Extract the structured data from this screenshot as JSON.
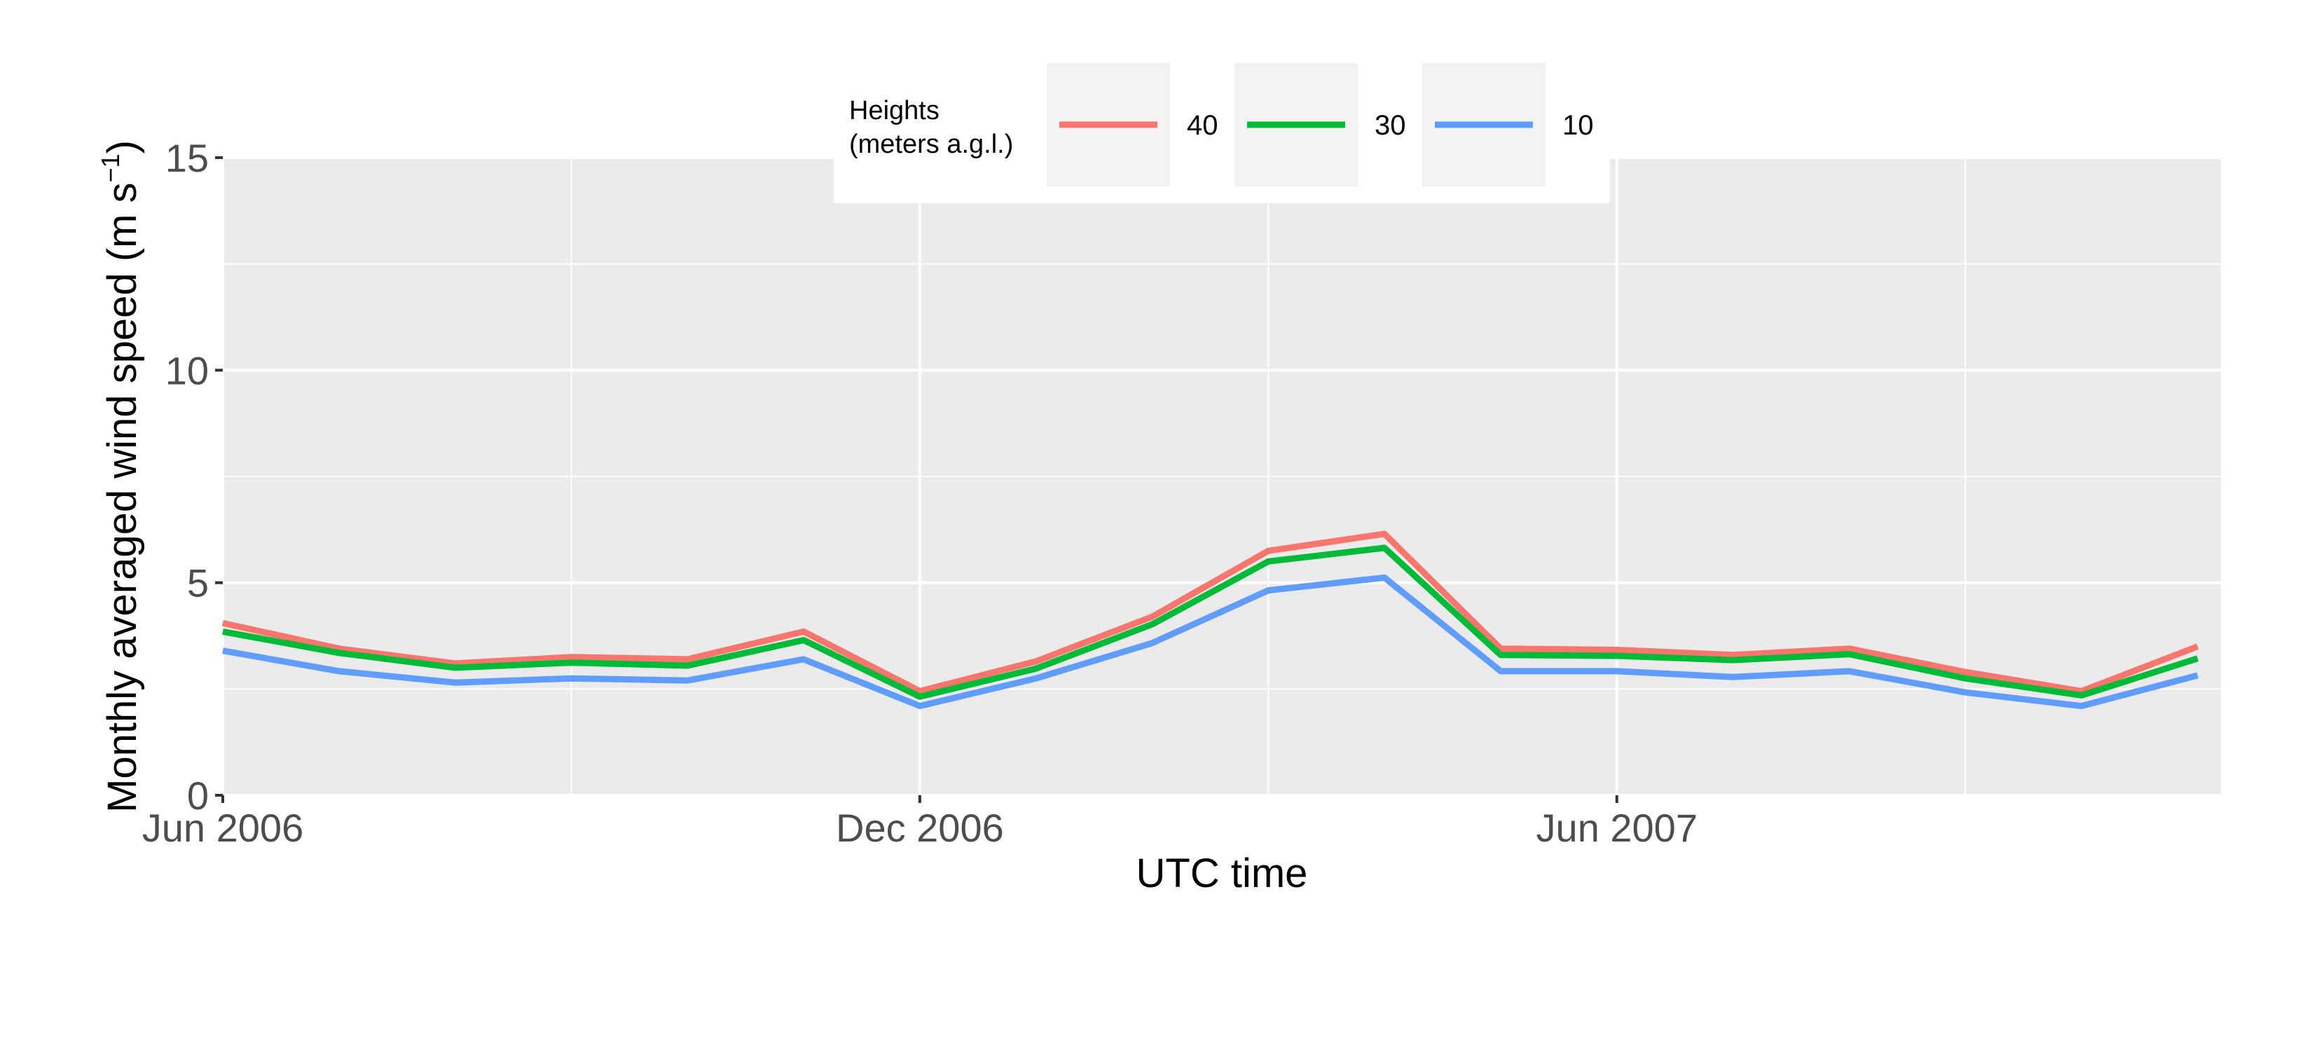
{
  "chart_data": {
    "type": "line",
    "title": "",
    "xlabel": "UTC time",
    "ylabel_main": "Monthly averaged wind speed (m s",
    "ylabel_sup": "−1",
    "ylabel_close": ")",
    "x": [
      "2006-06",
      "2006-07",
      "2006-08",
      "2006-09",
      "2006-10",
      "2006-11",
      "2006-12",
      "2007-01",
      "2007-02",
      "2007-03",
      "2007-04",
      "2007-05",
      "2007-06",
      "2007-07",
      "2007-08",
      "2007-09",
      "2007-10",
      "2007-11"
    ],
    "x_index": [
      0,
      1,
      2,
      3,
      4,
      5,
      6,
      7,
      8,
      9,
      10,
      11,
      12,
      13,
      14,
      15,
      16,
      17
    ],
    "xlim": [
      0,
      17.2
    ],
    "x_ticks": [
      {
        "index": 0,
        "label": "Jun 2006"
      },
      {
        "index": 6,
        "label": "Dec 2006"
      },
      {
        "index": 12,
        "label": "Jun 2007"
      }
    ],
    "x_minor_grid": [
      3,
      9,
      15
    ],
    "ylim": [
      0,
      15
    ],
    "y_ticks": [
      0,
      5,
      10,
      15
    ],
    "y_minor_grid": [
      2.5,
      7.5,
      12.5
    ],
    "grid": true,
    "legend": {
      "title_line1": "Heights",
      "title_line2": "(meters a.g.l.)",
      "position": "top"
    },
    "series": [
      {
        "name": "40",
        "color": "#F8766D",
        "values": [
          4.05,
          3.45,
          3.1,
          3.25,
          3.2,
          3.85,
          2.45,
          3.15,
          4.2,
          5.75,
          6.15,
          3.45,
          3.42,
          3.3,
          3.45,
          2.9,
          2.45,
          3.5
        ]
      },
      {
        "name": "30",
        "color": "#00BA38",
        "values": [
          3.85,
          3.35,
          3.0,
          3.12,
          3.05,
          3.65,
          2.32,
          2.98,
          4.02,
          5.5,
          5.82,
          3.3,
          3.28,
          3.18,
          3.32,
          2.75,
          2.35,
          3.22
        ]
      },
      {
        "name": "10",
        "color": "#619CFF",
        "values": [
          3.4,
          2.92,
          2.65,
          2.75,
          2.7,
          3.2,
          2.1,
          2.75,
          3.58,
          4.82,
          5.12,
          2.92,
          2.92,
          2.78,
          2.92,
          2.42,
          2.1,
          2.82
        ]
      }
    ]
  }
}
